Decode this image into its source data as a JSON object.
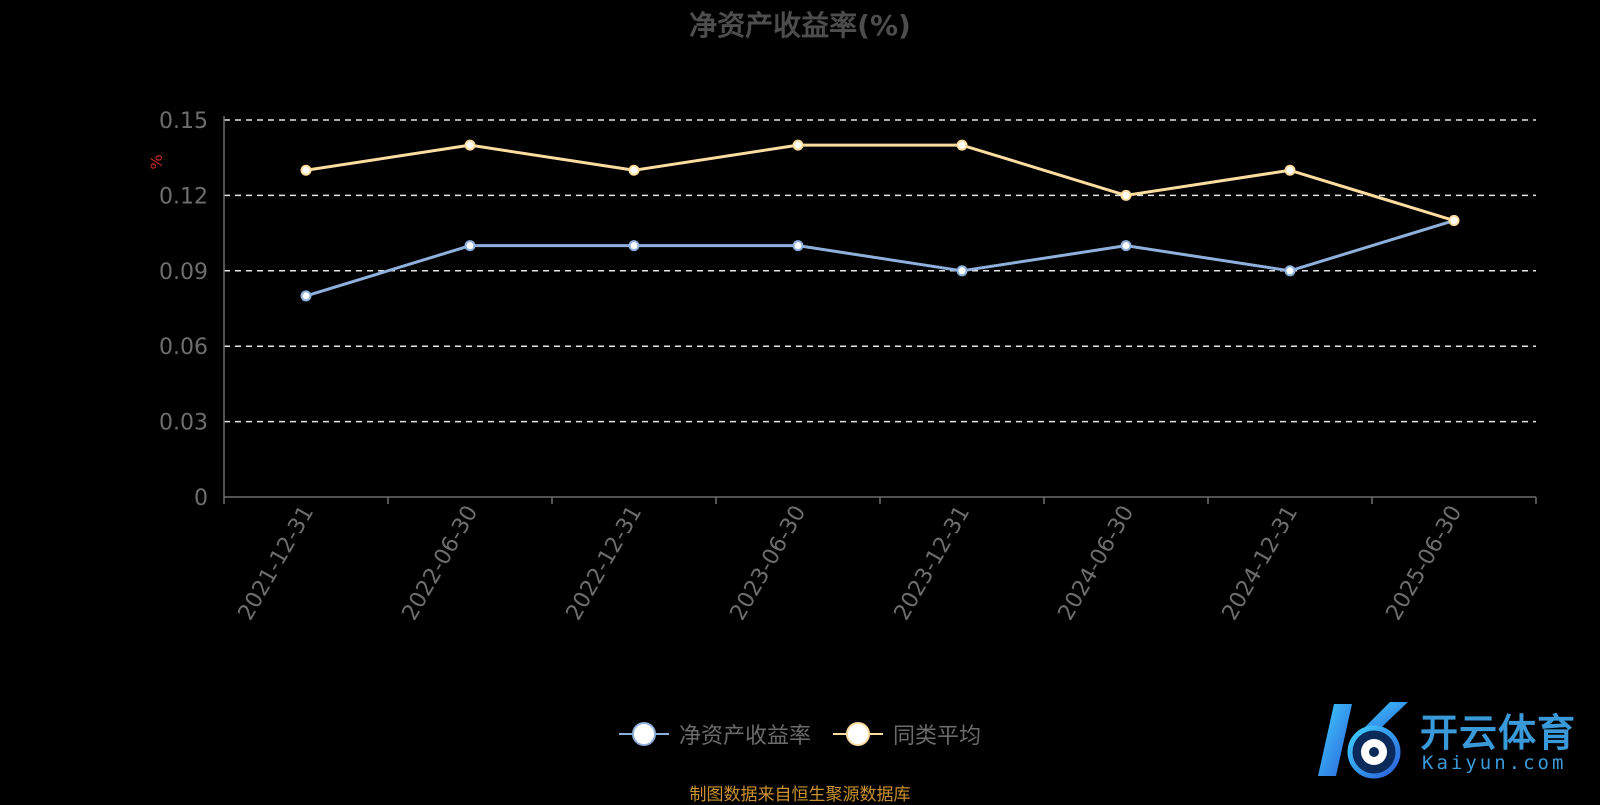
{
  "chart_data": {
    "type": "line",
    "title": "净资产收益率(%)",
    "ylabel": "%",
    "categories": [
      "2021-12-31",
      "2022-06-30",
      "2022-12-31",
      "2023-06-30",
      "2023-12-31",
      "2024-06-30",
      "2024-12-31",
      "2025-06-30"
    ],
    "yticks": [
      "0",
      "0.03",
      "0.06",
      "0.09",
      "0.12",
      "0.15"
    ],
    "ylim": [
      0,
      0.15
    ],
    "grid": true,
    "legend_position": "bottom",
    "series": [
      {
        "name": "净资产收益率",
        "values": [
          0.08,
          0.1,
          0.1,
          0.1,
          0.09,
          0.1,
          0.09,
          0.11
        ],
        "color": "#8fb0dd"
      },
      {
        "name": "同类平均",
        "values": [
          0.13,
          0.14,
          0.13,
          0.14,
          0.14,
          0.12,
          0.13,
          0.11
        ],
        "color": "#fddca0"
      }
    ]
  },
  "legend": {
    "item1": "净资产收益率",
    "item2": "同类平均"
  },
  "source_note": "制图数据来自恒生聚源数据库",
  "watermark": {
    "cn": "开云体育",
    "en": "Kaiyun.com"
  }
}
